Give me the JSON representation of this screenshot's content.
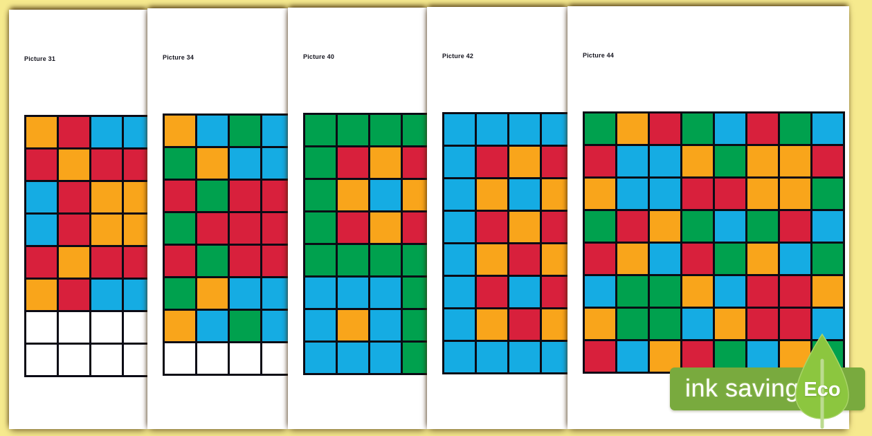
{
  "background_color": "#F6EA8E",
  "palette": {
    "O": "#F9A51B",
    "R": "#D8203C",
    "B": "#15ACE3",
    "G": "#00A14E",
    "W": "#FFFFFF",
    "grid_line": "#0B0B15"
  },
  "pages": [
    {
      "label": "Picture 31",
      "columns": 4,
      "rows": [
        [
          "O",
          "R",
          "B",
          "B"
        ],
        [
          "R",
          "O",
          "R",
          "R"
        ],
        [
          "B",
          "R",
          "O",
          "O"
        ],
        [
          "B",
          "R",
          "O",
          "O"
        ],
        [
          "R",
          "O",
          "R",
          "R"
        ],
        [
          "O",
          "R",
          "B",
          "B"
        ],
        [
          "W",
          "W",
          "W",
          "W"
        ],
        [
          "W",
          "W",
          "W",
          "W"
        ]
      ]
    },
    {
      "label": "Picture 34",
      "columns": 4,
      "rows": [
        [
          "O",
          "B",
          "G",
          "B"
        ],
        [
          "G",
          "O",
          "B",
          "B"
        ],
        [
          "R",
          "G",
          "R",
          "R"
        ],
        [
          "G",
          "R",
          "R",
          "R"
        ],
        [
          "R",
          "G",
          "R",
          "R"
        ],
        [
          "G",
          "O",
          "B",
          "B"
        ],
        [
          "O",
          "B",
          "G",
          "B"
        ],
        [
          "W",
          "W",
          "W",
          "W"
        ]
      ]
    },
    {
      "label": "Picture 40",
      "columns": 4,
      "rows": [
        [
          "G",
          "G",
          "G",
          "G"
        ],
        [
          "G",
          "R",
          "O",
          "R"
        ],
        [
          "G",
          "O",
          "B",
          "O"
        ],
        [
          "G",
          "R",
          "O",
          "R"
        ],
        [
          "G",
          "G",
          "G",
          "G"
        ],
        [
          "B",
          "B",
          "B",
          "G"
        ],
        [
          "B",
          "O",
          "B",
          "G"
        ],
        [
          "B",
          "B",
          "B",
          "G"
        ]
      ]
    },
    {
      "label": "Picture 42",
      "columns": 4,
      "rows": [
        [
          "B",
          "B",
          "B",
          "B"
        ],
        [
          "B",
          "R",
          "O",
          "R"
        ],
        [
          "B",
          "O",
          "B",
          "O"
        ],
        [
          "B",
          "R",
          "O",
          "R"
        ],
        [
          "B",
          "O",
          "R",
          "O"
        ],
        [
          "B",
          "R",
          "B",
          "R"
        ],
        [
          "B",
          "O",
          "R",
          "O"
        ],
        [
          "B",
          "B",
          "B",
          "B"
        ]
      ]
    },
    {
      "label": "Picture 44",
      "columns": 8,
      "rows": [
        [
          "G",
          "O",
          "R",
          "G",
          "B",
          "R",
          "G",
          "B"
        ],
        [
          "R",
          "B",
          "B",
          "O",
          "G",
          "O",
          "O",
          "R"
        ],
        [
          "O",
          "B",
          "B",
          "R",
          "R",
          "O",
          "O",
          "G"
        ],
        [
          "G",
          "R",
          "O",
          "G",
          "B",
          "G",
          "R",
          "B"
        ],
        [
          "R",
          "O",
          "B",
          "R",
          "G",
          "O",
          "B",
          "G"
        ],
        [
          "B",
          "G",
          "G",
          "O",
          "B",
          "R",
          "R",
          "O"
        ],
        [
          "O",
          "G",
          "G",
          "B",
          "O",
          "R",
          "R",
          "B"
        ],
        [
          "R",
          "B",
          "O",
          "R",
          "G",
          "B",
          "O",
          "G"
        ]
      ]
    }
  ],
  "badge": {
    "text": "ink saving",
    "eco_label": "Eco",
    "banner_color": "#79AA3E",
    "leaf_color": "#8CC63F",
    "leaf_stem_color": "#BCDB90"
  }
}
